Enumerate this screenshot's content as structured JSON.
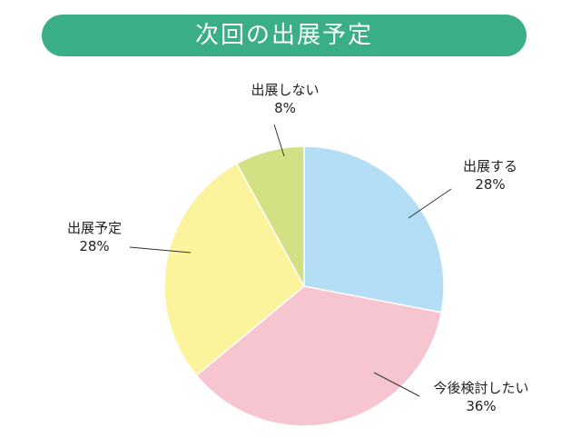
{
  "chart_data": {
    "type": "pie",
    "title": "次回の出展予定",
    "slices": [
      {
        "label": "出展する",
        "value": 28,
        "value_label": "28%",
        "color": "#b3def5"
      },
      {
        "label": "今後検討したい",
        "value": 36,
        "value_label": "36%",
        "color": "#f6c5cf"
      },
      {
        "label": "出展予定",
        "value": 28,
        "value_label": "28%",
        "color": "#fbf49c"
      },
      {
        "label": "出展しない",
        "value": 8,
        "value_label": "8%",
        "color": "#d2e183"
      }
    ],
    "start": "top",
    "direction": "clockwise",
    "banner_color": "#3aaf86"
  }
}
